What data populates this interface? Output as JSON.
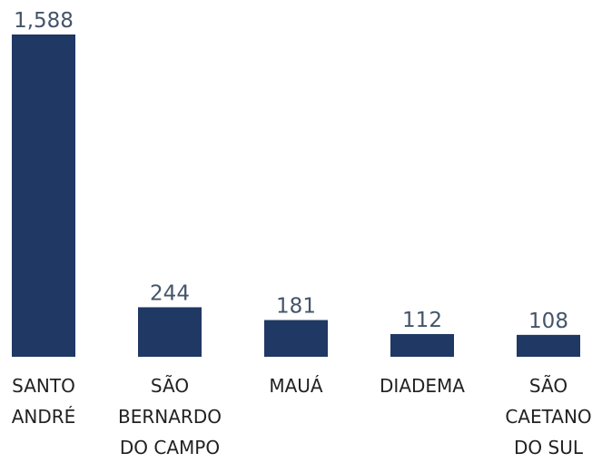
{
  "chart_data": {
    "type": "bar",
    "categories": [
      "SANTO ANDRÉ",
      "SÃO BERNARDO DO CAMPO",
      "MAUÁ",
      "DIADEMA",
      "SÃO CAETANO DO SUL"
    ],
    "values": [
      1588,
      244,
      181,
      112,
      108
    ],
    "value_labels": [
      "1,588",
      "244",
      "181",
      "112",
      "108"
    ],
    "color": "#1f3864"
  }
}
